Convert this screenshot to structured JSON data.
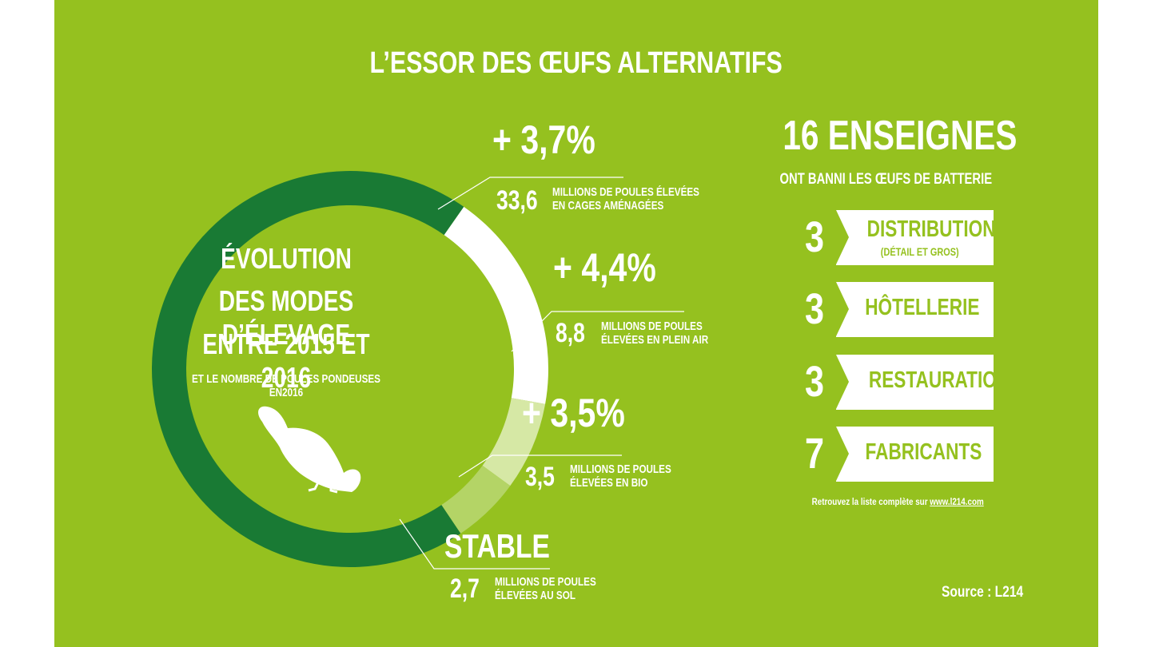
{
  "title": "L’ESSOR DES ŒUFS ALTERNATIFS",
  "center": {
    "line1": "ÉVOLUTION",
    "line2": "DES MODES D’ÉLEVAGE",
    "line3": "ENTRE 2015 ET 2016",
    "line4": "ET LE NOMBRE DE POULES PONDEUSES EN2016"
  },
  "colors": {
    "background": "#95c11f",
    "cages": "#197a34",
    "plein_air": "#ffffff",
    "bio": "#d6e8a5",
    "sol": "#b4d466"
  },
  "chart_data": {
    "type": "pie",
    "unit": "millions de poules",
    "slices": [
      {
        "key": "cages",
        "value": 33.6,
        "value_label": "33,6",
        "change": "+ 3,7%",
        "desc1": "MILLIONS DE POULES ÉLEVÉES",
        "desc2": "EN CAGES AMÉNAGÉES",
        "color": "#197a34"
      },
      {
        "key": "plein_air",
        "value": 8.8,
        "value_label": "8,8",
        "change": "+ 4,4%",
        "desc1": "MILLIONS DE POULES",
        "desc2": "ÉLEVÉES EN PLEIN AIR",
        "color": "#ffffff"
      },
      {
        "key": "bio",
        "value": 3.5,
        "value_label": "3,5",
        "change": "+ 3,5%",
        "desc1": "MILLIONS DE POULES",
        "desc2": "ÉLEVÉES EN BIO",
        "color": "#d6e8a5"
      },
      {
        "key": "sol",
        "value": 2.7,
        "value_label": "2,7",
        "change": "STABLE",
        "desc1": "MILLIONS DE POULES",
        "desc2": "ÉLEVÉES AU SOL",
        "color": "#b4d466"
      }
    ]
  },
  "brands": {
    "headline": "16 ENSEIGNES",
    "subline": "ONT BANNI LES ŒUFS DE BATTERIE",
    "categories": [
      {
        "count": "3",
        "label": "DISTRIBUTION",
        "sub": "(DÉTAIL ET GROS)"
      },
      {
        "count": "3",
        "label": "HÔTELLERIE",
        "sub": ""
      },
      {
        "count": "3",
        "label": "RESTAURATION",
        "sub": ""
      },
      {
        "count": "7",
        "label": "FABRICANTS",
        "sub": ""
      }
    ],
    "footer_text": "Retrouvez la liste complète sur ",
    "footer_link": "www.l214.com"
  },
  "hen_icon": "hen-icon",
  "source": "Source : L214"
}
